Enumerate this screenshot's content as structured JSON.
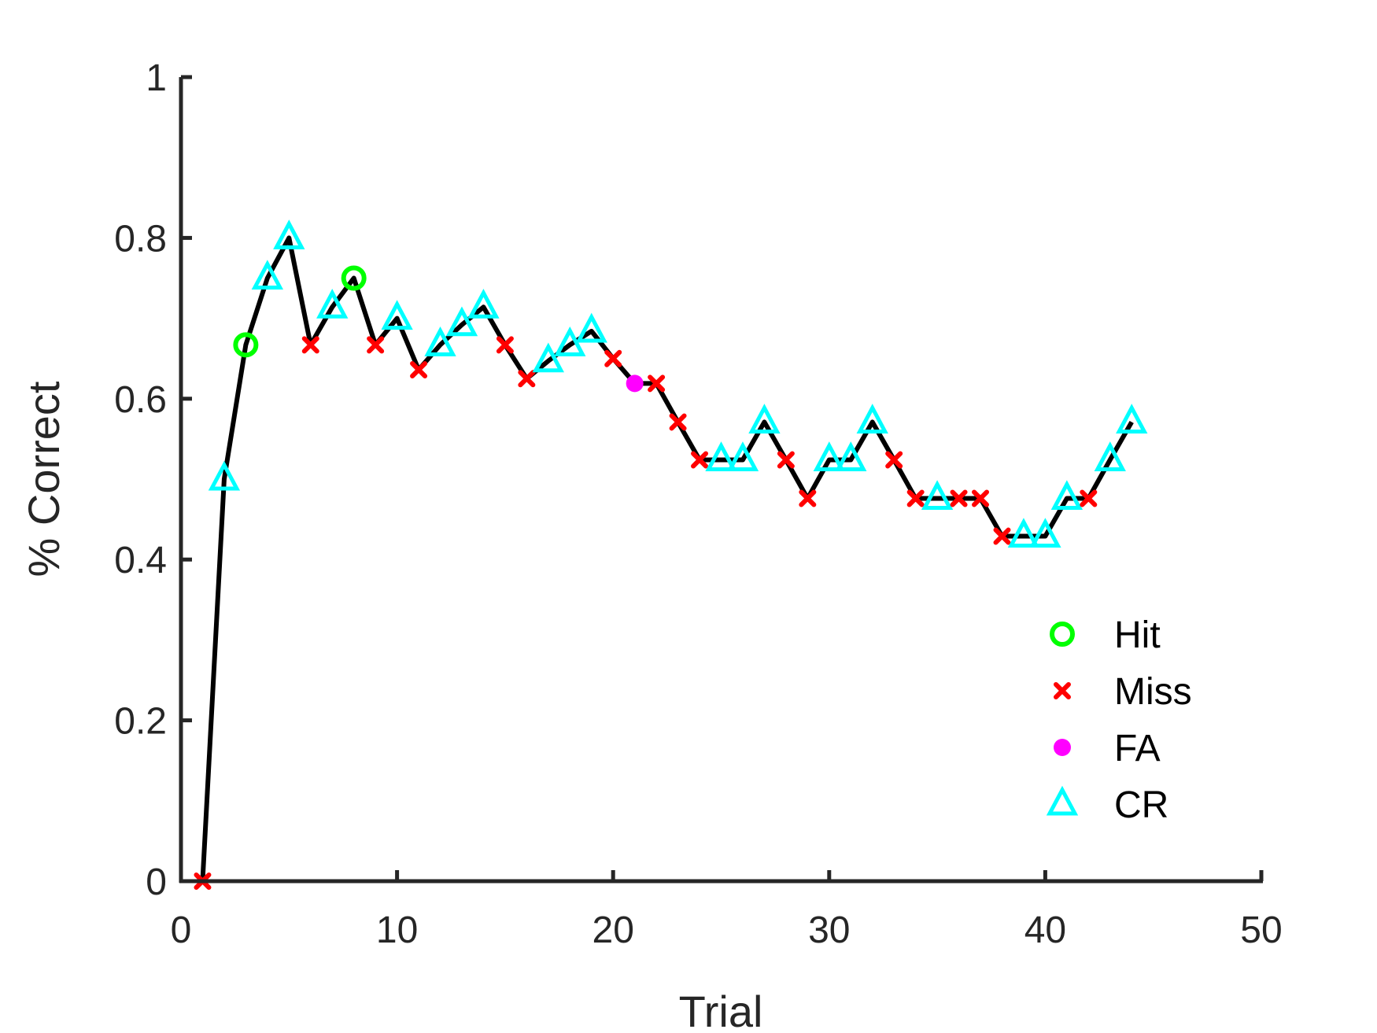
{
  "chart_data": {
    "type": "line",
    "xlabel": "Trial",
    "ylabel": "% Correct",
    "xlim": [
      0,
      50
    ],
    "ylim": [
      0,
      1
    ],
    "xticks": [
      0,
      10,
      20,
      30,
      40,
      50
    ],
    "yticks": [
      0,
      0.2,
      0.4,
      0.6,
      0.8,
      1
    ],
    "xtick_labels": [
      "0",
      "10",
      "20",
      "30",
      "40",
      "50"
    ],
    "ytick_labels": [
      "0",
      "0.2",
      "0.4",
      "0.6",
      "0.8",
      "1"
    ],
    "grid": false,
    "legend_position": "bottom-right",
    "line_color": "#000000",
    "x": [
      1,
      2,
      3,
      4,
      5,
      6,
      7,
      8,
      9,
      10,
      11,
      12,
      13,
      14,
      15,
      16,
      17,
      18,
      19,
      20,
      21,
      22,
      23,
      24,
      25,
      26,
      27,
      28,
      29,
      30,
      31,
      32,
      33,
      34,
      35,
      36,
      37,
      38,
      39,
      40,
      41,
      42,
      43,
      44
    ],
    "y": [
      0,
      0.5,
      0.667,
      0.75,
      0.8,
      0.667,
      0.714,
      0.75,
      0.667,
      0.7,
      0.636,
      0.667,
      0.692,
      0.714,
      0.667,
      0.625,
      0.647,
      0.667,
      0.684,
      0.65,
      0.619,
      0.619,
      0.571,
      0.524,
      0.524,
      0.524,
      0.571,
      0.524,
      0.476,
      0.524,
      0.524,
      0.571,
      0.524,
      0.476,
      0.476,
      0.476,
      0.476,
      0.429,
      0.429,
      0.429,
      0.476,
      0.476,
      0.524,
      0.571
    ],
    "outcomes": [
      "Miss",
      "CR",
      "Hit",
      "CR",
      "CR",
      "Miss",
      "CR",
      "Hit",
      "Miss",
      "CR",
      "Miss",
      "CR",
      "CR",
      "CR",
      "Miss",
      "Miss",
      "CR",
      "CR",
      "CR",
      "Miss",
      "FA",
      "Miss",
      "Miss",
      "Miss",
      "CR",
      "CR",
      "CR",
      "Miss",
      "Miss",
      "CR",
      "CR",
      "CR",
      "Miss",
      "Miss",
      "CR",
      "Miss",
      "Miss",
      "Miss",
      "CR",
      "CR",
      "CR",
      "Miss",
      "CR",
      "CR"
    ],
    "series": [
      {
        "name": "Hit",
        "marker": "circle",
        "color": "#00ff00"
      },
      {
        "name": "Miss",
        "marker": "x",
        "color": "#ff0000"
      },
      {
        "name": "FA",
        "marker": "dot",
        "color": "#ff00ff"
      },
      {
        "name": "CR",
        "marker": "triangle",
        "color": "#00ffff"
      }
    ]
  }
}
